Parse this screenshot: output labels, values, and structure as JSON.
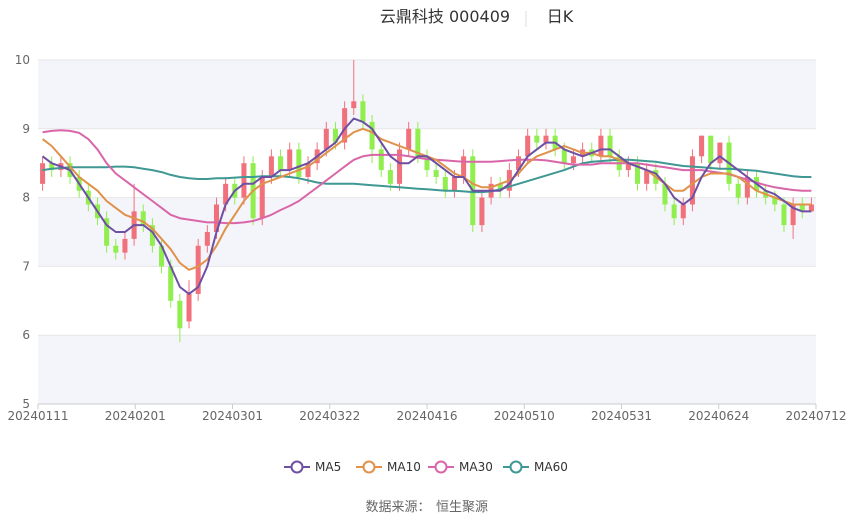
{
  "title": "云鼎科技 000409",
  "period": "日K",
  "source_label": "数据来源：",
  "source_name": "恒生聚源",
  "colors": {
    "up": "#f0717b",
    "down": "#90ee4f",
    "ma5": "#6d4fa3",
    "ma10": "#e0914a",
    "ma30": "#d966a8",
    "ma60": "#3f9894",
    "grid": "#e6e6e6",
    "band": "#f4f5fa"
  },
  "chart_data": {
    "type": "candlestick",
    "ylim": [
      5,
      10
    ],
    "yticks": [
      5,
      6,
      7,
      8,
      9,
      10
    ],
    "xticks": [
      "20240111",
      "20240201",
      "20240301",
      "20240322",
      "20240416",
      "20240510",
      "20240531",
      "20240624",
      "20240712"
    ],
    "legend": [
      "MA5",
      "MA10",
      "MA30",
      "MA60"
    ],
    "legend_position": "bottom",
    "candles": [
      [
        8.2,
        8.5,
        8.6,
        8.1
      ],
      [
        8.5,
        8.4,
        8.6,
        8.3
      ],
      [
        8.4,
        8.5,
        8.6,
        8.3
      ],
      [
        8.5,
        8.3,
        8.6,
        8.2
      ],
      [
        8.3,
        8.1,
        8.4,
        8.0
      ],
      [
        8.1,
        7.9,
        8.2,
        7.8
      ],
      [
        7.9,
        7.7,
        8.0,
        7.6
      ],
      [
        7.7,
        7.3,
        7.8,
        7.2
      ],
      [
        7.3,
        7.2,
        7.4,
        7.1
      ],
      [
        7.2,
        7.4,
        7.5,
        7.1
      ],
      [
        7.4,
        7.8,
        8.2,
        7.3
      ],
      [
        7.8,
        7.6,
        7.9,
        7.5
      ],
      [
        7.6,
        7.3,
        7.7,
        7.2
      ],
      [
        7.3,
        7.0,
        7.4,
        6.9
      ],
      [
        7.0,
        6.5,
        7.1,
        6.4
      ],
      [
        6.5,
        6.1,
        6.6,
        5.9
      ],
      [
        6.2,
        6.6,
        6.8,
        6.1
      ],
      [
        6.6,
        7.3,
        7.4,
        6.5
      ],
      [
        7.3,
        7.5,
        7.6,
        7.2
      ],
      [
        7.5,
        7.9,
        8.0,
        7.4
      ],
      [
        7.9,
        8.2,
        8.3,
        7.8
      ],
      [
        8.2,
        8.0,
        8.3,
        7.9
      ],
      [
        8.0,
        8.5,
        8.6,
        7.9
      ],
      [
        8.5,
        7.7,
        8.6,
        7.6
      ],
      [
        7.7,
        8.3,
        8.4,
        7.6
      ],
      [
        8.3,
        8.6,
        8.7,
        8.2
      ],
      [
        8.6,
        8.4,
        8.7,
        8.3
      ],
      [
        8.4,
        8.7,
        8.8,
        8.3
      ],
      [
        8.7,
        8.3,
        8.8,
        8.2
      ],
      [
        8.3,
        8.5,
        8.6,
        8.2
      ],
      [
        8.5,
        8.7,
        8.8,
        8.4
      ],
      [
        8.7,
        9.0,
        9.1,
        8.6
      ],
      [
        9.0,
        8.8,
        9.1,
        8.7
      ],
      [
        8.8,
        9.3,
        9.4,
        8.7
      ],
      [
        9.3,
        9.4,
        10.0,
        9.2
      ],
      [
        9.4,
        9.1,
        9.5,
        9.0
      ],
      [
        9.1,
        8.7,
        9.2,
        8.5
      ],
      [
        8.7,
        8.4,
        8.8,
        8.3
      ],
      [
        8.4,
        8.2,
        8.5,
        8.1
      ],
      [
        8.2,
        8.7,
        8.8,
        8.1
      ],
      [
        8.7,
        9.0,
        9.1,
        8.6
      ],
      [
        9.0,
        8.6,
        9.1,
        8.5
      ],
      [
        8.6,
        8.4,
        8.7,
        8.3
      ],
      [
        8.4,
        8.3,
        8.5,
        8.2
      ],
      [
        8.3,
        8.1,
        8.4,
        8.0
      ],
      [
        8.1,
        8.3,
        8.4,
        8.0
      ],
      [
        8.3,
        8.6,
        8.7,
        8.2
      ],
      [
        8.6,
        7.6,
        8.7,
        7.5
      ],
      [
        7.6,
        8.0,
        8.1,
        7.5
      ],
      [
        8.0,
        8.2,
        8.3,
        7.9
      ],
      [
        8.2,
        8.1,
        8.3,
        8.0
      ],
      [
        8.1,
        8.4,
        8.5,
        8.0
      ],
      [
        8.4,
        8.6,
        8.7,
        8.3
      ],
      [
        8.6,
        8.9,
        9.0,
        8.5
      ],
      [
        8.9,
        8.8,
        9.0,
        8.7
      ],
      [
        8.8,
        8.9,
        9.0,
        8.7
      ],
      [
        8.9,
        8.7,
        9.0,
        8.6
      ],
      [
        8.7,
        8.5,
        8.8,
        8.4
      ],
      [
        8.5,
        8.6,
        8.7,
        8.4
      ],
      [
        8.6,
        8.7,
        8.8,
        8.5
      ],
      [
        8.7,
        8.6,
        8.8,
        8.5
      ],
      [
        8.6,
        8.9,
        9.0,
        8.5
      ],
      [
        8.9,
        8.6,
        9.0,
        8.5
      ],
      [
        8.6,
        8.4,
        8.7,
        8.3
      ],
      [
        8.4,
        8.5,
        8.6,
        8.3
      ],
      [
        8.5,
        8.2,
        8.6,
        8.1
      ],
      [
        8.2,
        8.4,
        8.5,
        8.1
      ],
      [
        8.4,
        8.2,
        8.5,
        8.1
      ],
      [
        8.2,
        7.9,
        8.3,
        7.8
      ],
      [
        7.9,
        7.7,
        8.0,
        7.6
      ],
      [
        7.7,
        7.9,
        8.0,
        7.6
      ],
      [
        7.9,
        8.6,
        8.7,
        7.8
      ],
      [
        8.6,
        8.9,
        8.9,
        8.5
      ],
      [
        8.9,
        8.5,
        8.9,
        8.4
      ],
      [
        8.5,
        8.8,
        8.8,
        8.4
      ],
      [
        8.8,
        8.2,
        8.9,
        8.1
      ],
      [
        8.2,
        8.0,
        8.3,
        7.9
      ],
      [
        8.0,
        8.3,
        8.4,
        7.9
      ],
      [
        8.3,
        8.1,
        8.4,
        8.0
      ],
      [
        8.1,
        8.0,
        8.2,
        7.9
      ],
      [
        8.0,
        7.9,
        8.1,
        7.8
      ],
      [
        7.9,
        7.6,
        8.0,
        7.5
      ],
      [
        7.6,
        7.9,
        8.0,
        7.4
      ],
      [
        7.9,
        7.8,
        8.0,
        7.7
      ],
      [
        7.8,
        7.9,
        8.0,
        7.8
      ]
    ],
    "ma5": [
      8.6,
      8.5,
      8.45,
      8.4,
      8.2,
      8.0,
      7.8,
      7.6,
      7.5,
      7.5,
      7.6,
      7.6,
      7.5,
      7.3,
      7.0,
      6.7,
      6.6,
      6.7,
      7.0,
      7.5,
      7.9,
      8.1,
      8.2,
      8.2,
      8.3,
      8.3,
      8.4,
      8.4,
      8.45,
      8.5,
      8.6,
      8.7,
      8.8,
      9.0,
      9.15,
      9.1,
      9.0,
      8.8,
      8.6,
      8.5,
      8.5,
      8.6,
      8.6,
      8.5,
      8.4,
      8.3,
      8.3,
      8.1,
      8.1,
      8.1,
      8.1,
      8.2,
      8.4,
      8.6,
      8.7,
      8.8,
      8.8,
      8.7,
      8.65,
      8.6,
      8.65,
      8.7,
      8.7,
      8.6,
      8.5,
      8.45,
      8.4,
      8.35,
      8.2,
      8.0,
      7.9,
      8.0,
      8.3,
      8.5,
      8.6,
      8.5,
      8.4,
      8.3,
      8.2,
      8.1,
      8.05,
      7.95,
      7.85,
      7.8,
      7.8
    ],
    "ma10": [
      8.85,
      8.75,
      8.6,
      8.45,
      8.3,
      8.2,
      8.1,
      7.95,
      7.85,
      7.75,
      7.7,
      7.65,
      7.55,
      7.4,
      7.25,
      7.05,
      6.95,
      7.0,
      7.1,
      7.3,
      7.55,
      7.75,
      7.95,
      8.1,
      8.2,
      8.25,
      8.3,
      8.35,
      8.4,
      8.45,
      8.55,
      8.65,
      8.75,
      8.85,
      8.95,
      9.0,
      8.95,
      8.85,
      8.8,
      8.75,
      8.7,
      8.65,
      8.6,
      8.55,
      8.45,
      8.35,
      8.3,
      8.2,
      8.15,
      8.15,
      8.2,
      8.25,
      8.35,
      8.5,
      8.6,
      8.65,
      8.7,
      8.75,
      8.7,
      8.65,
      8.65,
      8.6,
      8.6,
      8.55,
      8.5,
      8.45,
      8.4,
      8.3,
      8.2,
      8.1,
      8.1,
      8.2,
      8.3,
      8.35,
      8.35,
      8.35,
      8.3,
      8.2,
      8.1,
      8.05,
      8.0,
      7.95,
      7.9,
      7.9,
      7.9
    ],
    "ma30": [
      8.95,
      8.97,
      8.98,
      8.97,
      8.94,
      8.85,
      8.7,
      8.5,
      8.35,
      8.25,
      8.15,
      8.05,
      7.95,
      7.85,
      7.75,
      7.7,
      7.68,
      7.66,
      7.64,
      7.64,
      7.63,
      7.63,
      7.64,
      7.66,
      7.7,
      7.75,
      7.82,
      7.88,
      7.95,
      8.05,
      8.15,
      8.25,
      8.35,
      8.45,
      8.55,
      8.6,
      8.62,
      8.62,
      8.62,
      8.62,
      8.6,
      8.58,
      8.56,
      8.55,
      8.54,
      8.53,
      8.52,
      8.52,
      8.52,
      8.52,
      8.53,
      8.54,
      8.55,
      8.55,
      8.55,
      8.54,
      8.52,
      8.5,
      8.48,
      8.48,
      8.48,
      8.5,
      8.5,
      8.5,
      8.5,
      8.5,
      8.48,
      8.46,
      8.44,
      8.42,
      8.4,
      8.4,
      8.4,
      8.38,
      8.36,
      8.34,
      8.3,
      8.26,
      8.22,
      8.18,
      8.15,
      8.13,
      8.11,
      8.1,
      8.1
    ],
    "ma60": [
      8.4,
      8.42,
      8.43,
      8.44,
      8.44,
      8.44,
      8.44,
      8.44,
      8.45,
      8.45,
      8.44,
      8.42,
      8.4,
      8.37,
      8.33,
      8.3,
      8.28,
      8.27,
      8.27,
      8.28,
      8.28,
      8.29,
      8.3,
      8.3,
      8.31,
      8.31,
      8.31,
      8.3,
      8.28,
      8.25,
      8.22,
      8.2,
      8.2,
      8.2,
      8.2,
      8.19,
      8.18,
      8.17,
      8.16,
      8.15,
      8.14,
      8.13,
      8.12,
      8.11,
      8.1,
      8.1,
      8.09,
      8.08,
      8.08,
      8.09,
      8.12,
      8.16,
      8.2,
      8.24,
      8.28,
      8.32,
      8.36,
      8.4,
      8.45,
      8.5,
      8.52,
      8.53,
      8.54,
      8.55,
      8.55,
      8.54,
      8.53,
      8.52,
      8.5,
      8.48,
      8.46,
      8.45,
      8.44,
      8.43,
      8.42,
      8.42,
      8.41,
      8.4,
      8.39,
      8.37,
      8.35,
      8.33,
      8.31,
      8.3,
      8.3
    ]
  }
}
